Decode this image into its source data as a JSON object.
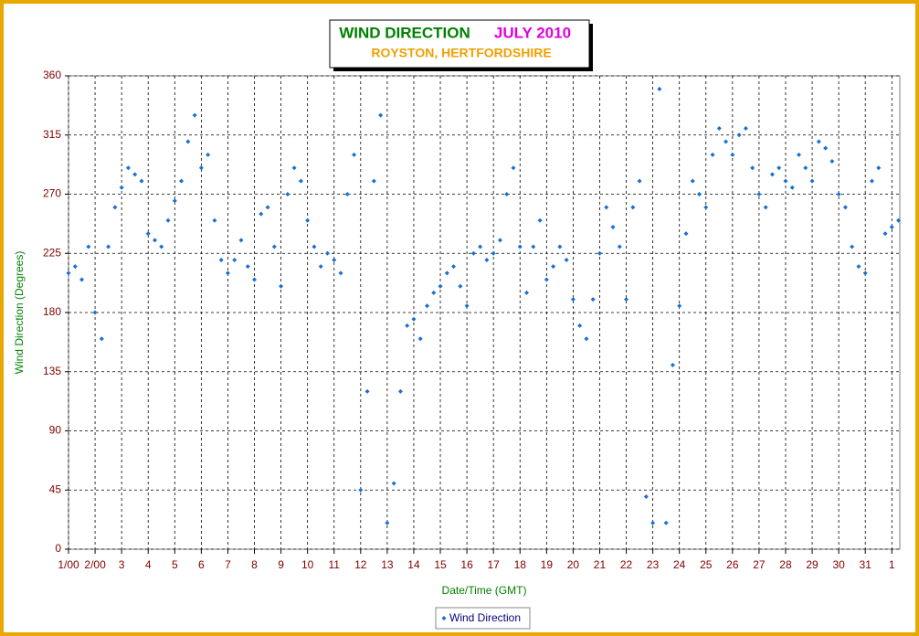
{
  "chart_data": {
    "type": "scatter",
    "title": "WIND DIRECTION",
    "title_date": "JULY 2010",
    "subtitle": "ROYSTON, HERTFORDSHIRE",
    "x_label": "Date/Time (GMT)",
    "y_label": "Wind Direction (Degrees)",
    "xlim": [
      1,
      32.3
    ],
    "ylim": [
      0,
      360
    ],
    "yticks": [
      0,
      45,
      90,
      135,
      180,
      225,
      270,
      315,
      360
    ],
    "xticks": [
      {
        "value": 1,
        "label": "1/00"
      },
      {
        "value": 2,
        "label": "2/00"
      },
      3,
      4,
      5,
      6,
      7,
      8,
      9,
      10,
      11,
      12,
      13,
      14,
      15,
      16,
      17,
      18,
      19,
      20,
      21,
      22,
      23,
      24,
      25,
      26,
      27,
      28,
      29,
      30,
      31,
      {
        "value": 32,
        "label": "1"
      }
    ],
    "grid": true,
    "legend": "bottom",
    "x": [
      1,
      1.25,
      1.5,
      1.75,
      2,
      2.25,
      2.5,
      2.75,
      3,
      3.25,
      3.5,
      3.75,
      4,
      4.25,
      4.5,
      4.75,
      5,
      5.25,
      5.5,
      5.75,
      6,
      6.25,
      6.5,
      6.75,
      7,
      7.25,
      7.5,
      7.75,
      8,
      8.25,
      8.5,
      8.75,
      9,
      9.25,
      9.5,
      9.75,
      10,
      10.25,
      10.5,
      10.75,
      11,
      11.25,
      11.5,
      11.75,
      12,
      12.25,
      12.5,
      12.75,
      13,
      13.25,
      13.5,
      13.75,
      14,
      14.25,
      14.5,
      14.75,
      15,
      15.25,
      15.5,
      15.75,
      16,
      16.25,
      16.5,
      16.75,
      17,
      17.25,
      17.5,
      17.75,
      18,
      18.25,
      18.5,
      18.75,
      19,
      19.25,
      19.5,
      19.75,
      20,
      20.25,
      20.5,
      20.75,
      21,
      21.25,
      21.5,
      21.75,
      22,
      22.25,
      22.5,
      22.75,
      23,
      23.25,
      23.5,
      23.75,
      24,
      24.25,
      24.5,
      24.75,
      25,
      25.25,
      25.5,
      25.75,
      26,
      26.25,
      26.5,
      26.75,
      27,
      27.25,
      27.5,
      27.75,
      28,
      28.25,
      28.5,
      28.75,
      29,
      29.25,
      29.5,
      29.75,
      30,
      30.25,
      30.5,
      30.75,
      31,
      31.25,
      31.5,
      31.75,
      32,
      32.25
    ],
    "series": [
      {
        "name": "Wind Direction",
        "color": "#1a6fd0",
        "values": [
          210,
          215,
          205,
          230,
          180,
          160,
          230,
          260,
          275,
          290,
          285,
          280,
          240,
          235,
          230,
          250,
          265,
          280,
          310,
          330,
          290,
          300,
          250,
          220,
          210,
          220,
          235,
          215,
          205,
          255,
          260,
          230,
          200,
          270,
          290,
          280,
          250,
          230,
          215,
          225,
          220,
          210,
          270,
          300,
          45,
          120,
          280,
          330,
          20,
          50,
          120,
          170,
          175,
          160,
          185,
          195,
          200,
          210,
          215,
          200,
          185,
          225,
          230,
          220,
          225,
          235,
          270,
          290,
          230,
          195,
          230,
          250,
          205,
          215,
          230,
          220,
          190,
          170,
          160,
          190,
          225,
          260,
          245,
          230,
          190,
          260,
          280,
          40,
          20,
          350,
          20,
          140,
          185,
          240,
          280,
          270,
          260,
          300,
          320,
          310,
          300,
          315,
          320,
          290,
          270,
          260,
          285,
          290,
          280,
          275,
          300,
          290,
          280,
          310,
          305,
          295,
          270,
          260,
          230,
          215,
          210,
          280,
          290,
          240,
          245,
          250
        ]
      }
    ]
  }
}
